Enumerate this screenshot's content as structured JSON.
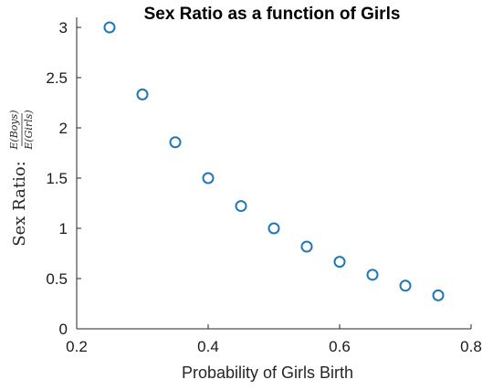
{
  "chart_data": {
    "type": "scatter",
    "title": "Sex Ratio as a function of Girls",
    "xlabel": "Probability of Girls Birth",
    "ylabel": {
      "prefix": "Sex Ratio:",
      "numerator": "E(Boys)",
      "denominator": "E(Girls)"
    },
    "xlim": [
      0.2,
      0.8
    ],
    "ylim": [
      0,
      3
    ],
    "xticks": [
      "0.2",
      "0.4",
      "0.6",
      "0.8"
    ],
    "yticks": [
      "0",
      "0.5",
      "1",
      "1.5",
      "2",
      "2.5",
      "3"
    ],
    "grid": false,
    "marker_color": "#1f77b4",
    "series": [
      {
        "x": [
          0.25,
          0.3,
          0.35,
          0.4,
          0.45,
          0.5,
          0.55,
          0.6,
          0.65,
          0.7,
          0.75
        ],
        "y": [
          3.0,
          2.333,
          1.857,
          1.5,
          1.222,
          1.0,
          0.818,
          0.667,
          0.538,
          0.429,
          0.333
        ]
      }
    ]
  }
}
